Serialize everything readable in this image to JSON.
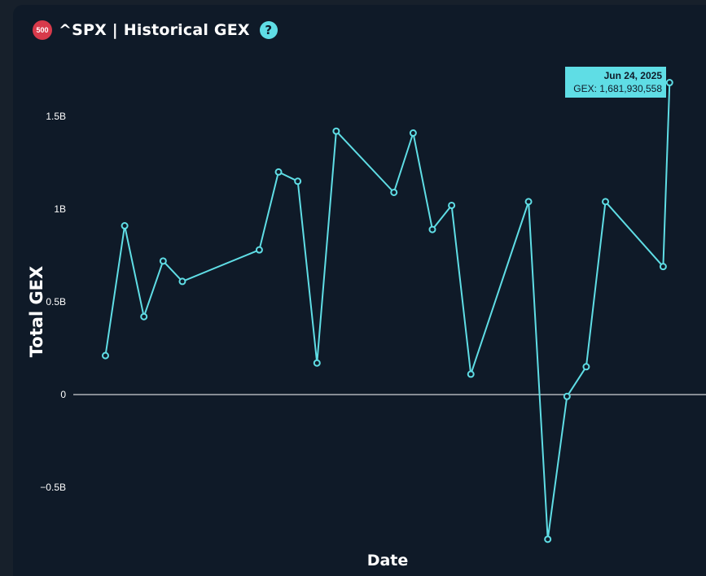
{
  "header": {
    "badge": "500",
    "title": "^SPX | Historical GEX",
    "help_icon": "?"
  },
  "colors": {
    "background": "#0f1a28",
    "line": "#5fdde5",
    "badge": "#d83a4b"
  },
  "tooltip": {
    "date": "Jun 24, 2025",
    "value": "GEX: 1,681,930,558"
  },
  "chart_data": {
    "type": "line",
    "xlabel": "Date",
    "ylabel": "Total GEX",
    "ylim": [
      -0.8,
      1.75
    ],
    "y_unit": "B",
    "grid": false,
    "zero_line": true,
    "y_ticks": [
      {
        "value": 1.5,
        "label": "1.5B"
      },
      {
        "value": 1.0,
        "label": "1B"
      },
      {
        "value": 0.5,
        "label": "0.5B"
      },
      {
        "value": 0.0,
        "label": "0"
      },
      {
        "value": -0.5,
        "label": "−0.5B"
      }
    ],
    "x_range": [
      "2025-03-24",
      "2025-06-26"
    ],
    "series": [
      {
        "points": [
          {
            "x": "2025-03-28",
            "y": 0.21
          },
          {
            "x": "2025-03-31",
            "y": 0.91
          },
          {
            "x": "2025-04-03",
            "y": 0.42
          },
          {
            "x": "2025-04-06",
            "y": 0.72
          },
          {
            "x": "2025-04-09",
            "y": 0.61
          },
          {
            "x": "2025-04-21",
            "y": 0.78
          },
          {
            "x": "2025-04-24",
            "y": 1.2
          },
          {
            "x": "2025-04-27",
            "y": 1.15
          },
          {
            "x": "2025-04-30",
            "y": 0.17
          },
          {
            "x": "2025-05-03",
            "y": 1.42
          },
          {
            "x": "2025-05-12",
            "y": 1.09
          },
          {
            "x": "2025-05-15",
            "y": 1.41
          },
          {
            "x": "2025-05-18",
            "y": 0.89
          },
          {
            "x": "2025-05-21",
            "y": 1.02
          },
          {
            "x": "2025-05-24",
            "y": 0.11
          },
          {
            "x": "2025-06-02",
            "y": 1.04
          },
          {
            "x": "2025-06-05",
            "y": -0.78
          },
          {
            "x": "2025-06-08",
            "y": -0.01
          },
          {
            "x": "2025-06-11",
            "y": 0.15
          },
          {
            "x": "2025-06-14",
            "y": 1.04
          },
          {
            "x": "2025-06-23",
            "y": 0.69
          },
          {
            "x": "2025-06-24",
            "y": 1.681930558
          }
        ]
      }
    ]
  }
}
